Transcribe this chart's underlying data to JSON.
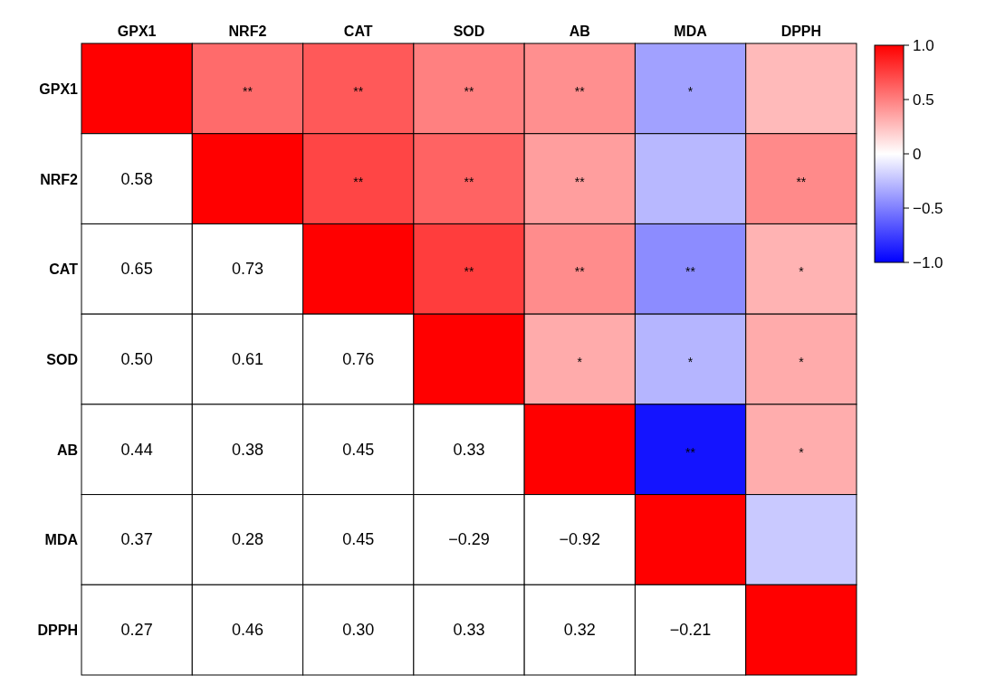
{
  "chart_data": {
    "type": "heatmap",
    "categories": [
      "GPX1",
      "NRF2",
      "CAT",
      "SOD",
      "AB",
      "MDA",
      "DPPH"
    ],
    "y_categories": [
      "GPX1",
      "NRF2",
      "CAT",
      "SOD",
      "AB",
      "MDA",
      "DPPH"
    ],
    "cells": [
      [
        1,
        0.58,
        0.65,
        0.5,
        0.44,
        -0.37,
        0.27
      ],
      [
        null,
        1,
        0.73,
        0.61,
        0.38,
        -0.28,
        0.46
      ],
      [
        null,
        null,
        1,
        0.76,
        0.45,
        -0.45,
        0.3
      ],
      [
        null,
        null,
        null,
        1,
        0.33,
        -0.29,
        0.33
      ],
      [
        null,
        null,
        null,
        null,
        1,
        -0.92,
        0.32
      ],
      [
        null,
        null,
        null,
        null,
        null,
        1,
        -0.21
      ],
      [
        null,
        null,
        null,
        null,
        null,
        null,
        1
      ]
    ],
    "cell_labels": [
      [
        null,
        "**",
        "**",
        "**",
        "**",
        "*",
        null
      ],
      [
        "0.58",
        null,
        "**",
        "**",
        "**",
        null,
        "**"
      ],
      [
        "0.65",
        "0.73",
        null,
        "**",
        "**",
        "**",
        "*"
      ],
      [
        "0.50",
        "0.61",
        "0.76",
        null,
        "*",
        "*",
        "*"
      ],
      [
        "0.44",
        "0.38",
        "0.45",
        "0.33",
        null,
        "**",
        "*"
      ],
      [
        "0.37",
        "0.28",
        "0.45",
        "−0.29",
        "−0.92",
        null,
        null
      ],
      [
        "0.27",
        "0.46",
        "0.30",
        "0.33",
        "0.32",
        "−0.21",
        null
      ]
    ],
    "clim": [
      -1,
      1
    ],
    "cticks": [
      {
        "value": 1,
        "label": "1.0"
      },
      0.5,
      0,
      {
        "value": -0.5,
        "label": "−0.5"
      },
      {
        "value": -1,
        "label": "−1.0"
      }
    ]
  }
}
